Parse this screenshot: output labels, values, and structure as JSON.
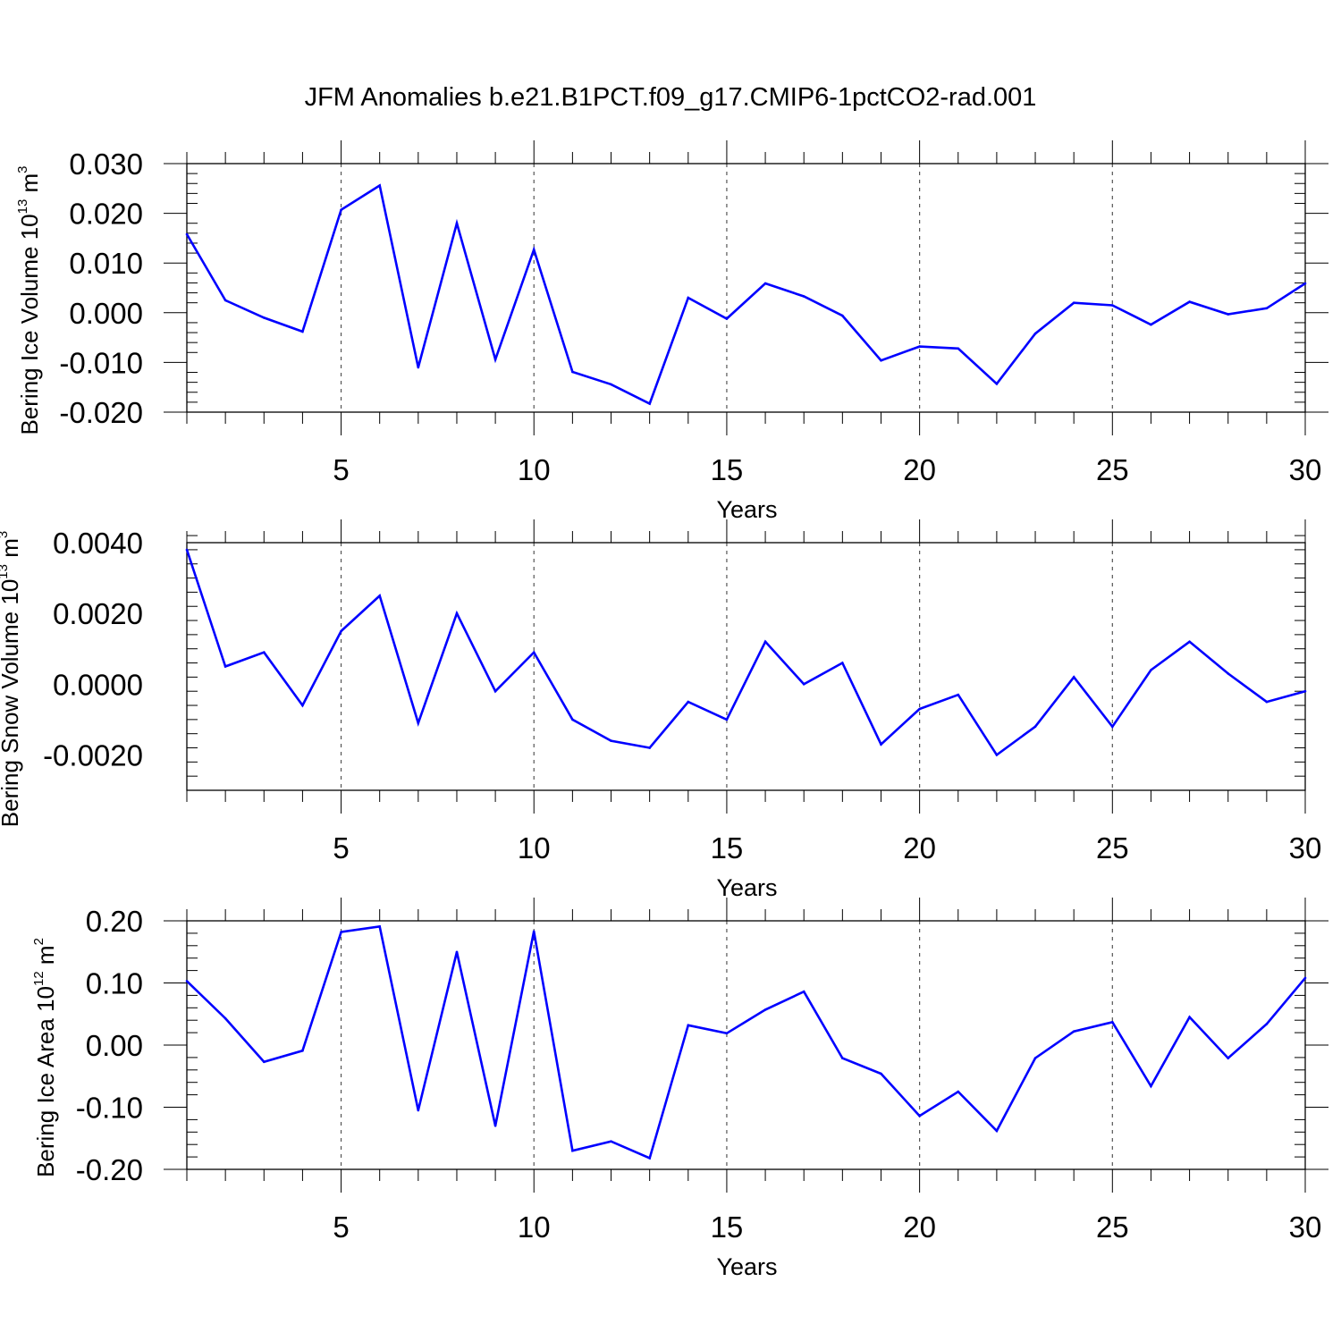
{
  "title": "JFM Anomalies b.e21.B1PCT.f09_g17.CMIP6-1pctCO2-rad.001",
  "chart_data": [
    {
      "type": "line",
      "ylabel": {
        "main": "Bering Ice Volume 10",
        "sup": "13",
        "unit": " m",
        "unit_sup": "3"
      },
      "xlabel": "Years",
      "xlim": [
        1,
        30
      ],
      "ylim": [
        -0.02,
        0.03
      ],
      "yticks": [
        -0.02,
        -0.01,
        0.0,
        0.01,
        0.02,
        0.03
      ],
      "ytick_labels": [
        "-0.020",
        "-0.010",
        "0.000",
        "0.010",
        "0.020",
        "0.030"
      ],
      "xticks": [
        5,
        10,
        15,
        20,
        25,
        30
      ],
      "xtick_labels": [
        "5",
        "10",
        "15",
        "20",
        "25",
        "30"
      ],
      "grid": "dashed vertical at x ticks",
      "color": "#0000ff",
      "x": [
        1,
        2,
        3,
        4,
        5,
        6,
        7,
        8,
        9,
        10,
        11,
        12,
        13,
        14,
        15,
        16,
        17,
        18,
        19,
        20,
        21,
        22,
        23,
        24,
        25,
        26,
        27,
        28,
        29,
        30
      ],
      "values": [
        0.0158,
        0.0025,
        -0.001,
        -0.0038,
        0.0207,
        0.0256,
        -0.011,
        0.018,
        -0.0094,
        0.0127,
        -0.0119,
        -0.0144,
        -0.0183,
        0.003,
        -0.0012,
        0.0059,
        0.0033,
        -0.0006,
        -0.0096,
        -0.0068,
        -0.0072,
        -0.0143,
        -0.0042,
        0.002,
        0.0015,
        -0.0024,
        0.0022,
        -0.0003,
        0.0009,
        0.0059
      ]
    },
    {
      "type": "line",
      "ylabel": {
        "main": "Bering Snow Volume 10",
        "sup": "13",
        "unit": " m",
        "unit_sup": "3"
      },
      "xlabel": "Years",
      "xlim": [
        1,
        30
      ],
      "ylim": [
        -0.003,
        0.004
      ],
      "yticks": [
        -0.002,
        0.0,
        0.002,
        0.004
      ],
      "ytick_labels": [
        "-0.0020",
        "0.0000",
        "0.0020",
        "0.0040"
      ],
      "xticks": [
        5,
        10,
        15,
        20,
        25,
        30
      ],
      "xtick_labels": [
        "5",
        "10",
        "15",
        "20",
        "25",
        "30"
      ],
      "grid": "dashed vertical at x ticks",
      "color": "#0000ff",
      "x": [
        1,
        2,
        3,
        4,
        5,
        6,
        7,
        8,
        9,
        10,
        11,
        12,
        13,
        14,
        15,
        16,
        17,
        18,
        19,
        20,
        21,
        22,
        23,
        24,
        25,
        26,
        27,
        28,
        29,
        30
      ],
      "values": [
        0.0038,
        0.0005,
        0.0009,
        -0.0006,
        0.0015,
        0.0025,
        -0.0011,
        0.002,
        -0.0002,
        0.0009,
        -0.001,
        -0.0016,
        -0.0018,
        -0.0005,
        -0.001,
        0.0012,
        0.0,
        0.0006,
        -0.0017,
        -0.0007,
        -0.0003,
        -0.002,
        -0.0012,
        0.0002,
        -0.0012,
        0.0004,
        0.0012,
        0.0003,
        -0.0005,
        -0.0002
      ]
    },
    {
      "type": "line",
      "ylabel": {
        "main": "Bering Ice Area 10",
        "sup": "12",
        "unit": " m",
        "unit_sup": "2"
      },
      "xlabel": "Years",
      "xlim": [
        1,
        30
      ],
      "ylim": [
        -0.2,
        0.2
      ],
      "yticks": [
        -0.2,
        -0.1,
        0.0,
        0.1,
        0.2
      ],
      "ytick_labels": [
        "-0.20",
        "-0.10",
        "0.00",
        "0.10",
        "0.20"
      ],
      "xticks": [
        5,
        10,
        15,
        20,
        25,
        30
      ],
      "xtick_labels": [
        "5",
        "10",
        "15",
        "20",
        "25",
        "30"
      ],
      "grid": "dashed vertical at x ticks",
      "color": "#0000ff",
      "x": [
        1,
        2,
        3,
        4,
        5,
        6,
        7,
        8,
        9,
        10,
        11,
        12,
        13,
        14,
        15,
        16,
        17,
        18,
        19,
        20,
        21,
        22,
        23,
        24,
        25,
        26,
        27,
        28,
        29,
        30
      ],
      "values": [
        0.103,
        0.043,
        -0.027,
        -0.009,
        0.182,
        0.191,
        -0.105,
        0.15,
        -0.13,
        0.183,
        -0.17,
        -0.155,
        -0.182,
        0.032,
        0.019,
        0.057,
        0.086,
        -0.021,
        -0.046,
        -0.114,
        -0.075,
        -0.138,
        -0.021,
        0.022,
        0.037,
        -0.066,
        0.045,
        -0.021,
        0.034,
        0.108
      ]
    }
  ]
}
